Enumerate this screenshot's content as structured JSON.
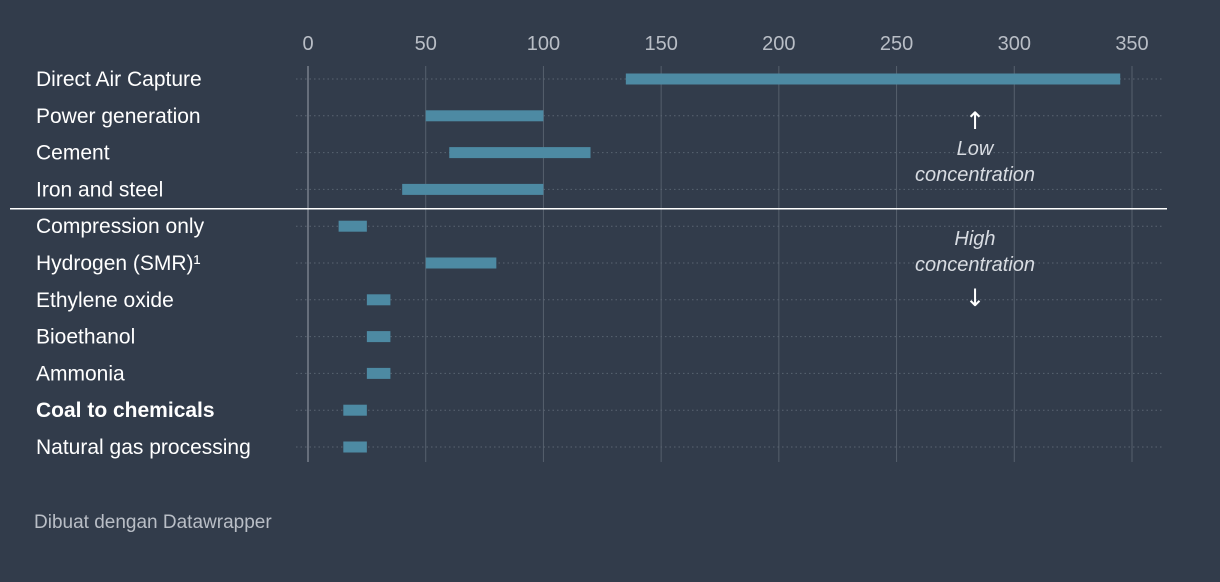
{
  "chart_data": {
    "type": "bar",
    "subtype": "range",
    "categories": [
      "Direct Air Capture",
      "Power generation",
      "Cement",
      "Iron and steel",
      "Compression only",
      "Hydrogen (SMR)¹",
      "Ethylene oxide",
      "Bioethanol",
      "Ammonia",
      "Coal to chemicals",
      "Natural gas processing"
    ],
    "ranges": [
      [
        135,
        345
      ],
      [
        50,
        100
      ],
      [
        60,
        120
      ],
      [
        40,
        100
      ],
      [
        13,
        25
      ],
      [
        50,
        80
      ],
      [
        25,
        35
      ],
      [
        25,
        35
      ],
      [
        25,
        35
      ],
      [
        15,
        25
      ],
      [
        15,
        25
      ]
    ],
    "bold_categories": [
      "Coal to chemicals"
    ],
    "xticks": [
      0,
      50,
      100,
      150,
      200,
      250,
      300,
      350
    ],
    "xlim": [
      0,
      350
    ],
    "divider_after_index": 3,
    "annotations": {
      "low": [
        "Low",
        "concentration"
      ],
      "high": [
        "High",
        "concentration"
      ],
      "up_arrow": "↑",
      "down_arrow": "↓"
    },
    "grid": true,
    "colors": {
      "background": "#323c4b",
      "bar": "#4d8aa3",
      "grid": "#56606d",
      "text": "#ffffff",
      "tick_text": "#b9bec6",
      "annotation": "#d8dce2"
    }
  },
  "footer": {
    "credit": "Dibuat dengan Datawrapper"
  }
}
